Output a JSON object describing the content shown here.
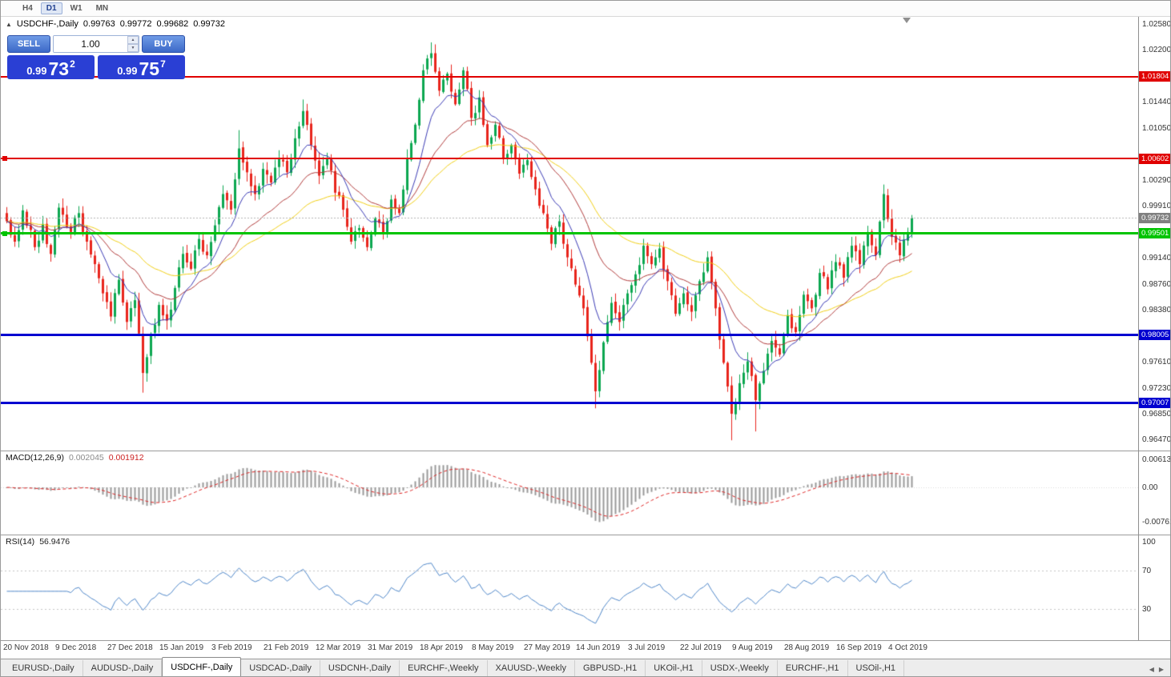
{
  "toolbar": {
    "timeframes": [
      {
        "label": "H4",
        "active": false
      },
      {
        "label": "D1",
        "active": true
      },
      {
        "label": "W1",
        "active": false
      },
      {
        "label": "MN",
        "active": false
      }
    ]
  },
  "icons": {
    "panel_toggle": "▲",
    "spin_up": "▲",
    "spin_down": "▼",
    "tab_left": "◀",
    "tab_right": "▶"
  },
  "chart_header": {
    "symbol": "USDCHF-,Daily",
    "open": "0.99763",
    "high": "0.99772",
    "low": "0.99682",
    "close": "0.99732"
  },
  "trade_panel": {
    "sell_label": "SELL",
    "buy_label": "BUY",
    "volume": "1.00",
    "sell_price": {
      "prefix": "0.99",
      "big": "73",
      "sup": "2"
    },
    "buy_price": {
      "prefix": "0.99",
      "big": "75",
      "sup": "7"
    }
  },
  "macd_panel": {
    "title": "MACD(12,26,9)",
    "value_main": "0.002045",
    "value_signal": "0.001912",
    "axis_labels": [
      "0.00613",
      "0.00",
      "-0.00761"
    ]
  },
  "rsi_panel": {
    "title": "RSI(14)",
    "value": "56.9476",
    "axis_labels": [
      "100",
      "70",
      "30"
    ]
  },
  "bottom_tabs": [
    {
      "label": "EURUSD-,Daily",
      "active": false
    },
    {
      "label": "AUDUSD-,Daily",
      "active": false
    },
    {
      "label": "USDCHF-,Daily",
      "active": true
    },
    {
      "label": "USDCAD-,Daily",
      "active": false
    },
    {
      "label": "USDCNH-,Daily",
      "active": false
    },
    {
      "label": "EURCHF-,Weekly",
      "active": false
    },
    {
      "label": "XAUUSD-,Weekly",
      "active": false
    },
    {
      "label": "GBPUSD-,H1",
      "active": false
    },
    {
      "label": "UKOil-,H1",
      "active": false
    },
    {
      "label": "USDX-,Weekly",
      "active": false
    },
    {
      "label": "EURCHF-,H1",
      "active": false
    },
    {
      "label": "USOil-,H1",
      "active": false
    }
  ],
  "colors": {
    "bull_candle": "#0CA750",
    "bear_candle": "#E8241C",
    "ma_fast": "#3A3AB4",
    "ma_mid": "#B03A3A",
    "ma_slow": "#F0CE15",
    "macd_histogram": "#9a9a9a",
    "macd_signal": "#DD2222",
    "rsi_line": "#4E86C8",
    "bid_line": "#b0b0b0",
    "bid_box": "#808080",
    "buy_sell_button": "#3C69C8",
    "price_box": "#2A3FD4",
    "level_red": "#E00000",
    "level_green": "#00C400",
    "level_blue": "#0000D0"
  },
  "chart_data": {
    "type": "candlestick",
    "symbol": "USDCHF",
    "timeframe": "Daily",
    "current_ohlc": {
      "open": 0.99763,
      "high": 0.99772,
      "low": 0.99682,
      "close": 0.99732
    },
    "bid": 0.99732,
    "price_axis_labels": [
      "1.02580",
      "1.02200",
      "1.01440",
      "1.01050",
      "1.00290",
      "0.99910",
      "0.99140",
      "0.98760",
      "0.98380",
      "0.97610",
      "0.97230",
      "0.96850",
      "0.96470"
    ],
    "price_axis_range": {
      "top": 1.02685,
      "bottom": 0.96265
    },
    "horizontal_levels": [
      {
        "price": 1.01804,
        "color": "#E00000",
        "thickness": 2,
        "label": "1.01804"
      },
      {
        "price": 1.00602,
        "color": "#E00000",
        "thickness": 2,
        "label": "1.00602"
      },
      {
        "price": 0.99501,
        "color": "#00C400",
        "thickness": 3,
        "label": "0.99501"
      },
      {
        "price": 0.98005,
        "color": "#0000D0",
        "thickness": 3,
        "label": "0.98005"
      },
      {
        "price": 0.97007,
        "color": "#0000D0",
        "thickness": 3,
        "label": "0.97007"
      }
    ],
    "date_labels": [
      "20 Nov 2018",
      "9 Dec 2018",
      "27 Dec 2018",
      "15 Jan 2019",
      "3 Feb 2019",
      "21 Feb 2019",
      "12 Mar 2019",
      "31 Mar 2019",
      "18 Apr 2019",
      "8 May 2019",
      "27 May 2019",
      "14 Jun 2019",
      "3 Jul 2019",
      "22 Jul 2019",
      "9 Aug 2019",
      "28 Aug 2019",
      "16 Sep 2019",
      "4 Oct 2019"
    ],
    "bars_total": 227,
    "bars_per_label": 13,
    "close_keyframes": [
      [
        0,
        0.9968
      ],
      [
        2,
        0.9938
      ],
      [
        4,
        0.9984
      ],
      [
        7,
        0.993
      ],
      [
        9,
        0.9964
      ],
      [
        11,
        0.992
      ],
      [
        13,
        0.9988
      ],
      [
        16,
        0.9952
      ],
      [
        18,
        0.998
      ],
      [
        20,
        0.9938
      ],
      [
        22,
        0.9905
      ],
      [
        24,
        0.9862
      ],
      [
        26,
        0.9828
      ],
      [
        28,
        0.9882
      ],
      [
        30,
        0.982
      ],
      [
        32,
        0.9852
      ],
      [
        34,
        0.9745
      ],
      [
        36,
        0.9802
      ],
      [
        38,
        0.9845
      ],
      [
        40,
        0.9822
      ],
      [
        42,
        0.987
      ],
      [
        44,
        0.992
      ],
      [
        46,
        0.9898
      ],
      [
        48,
        0.9942
      ],
      [
        50,
        0.9918
      ],
      [
        52,
        0.9962
      ],
      [
        54,
        1.0008
      ],
      [
        56,
        0.9985
      ],
      [
        58,
        1.0075
      ],
      [
        60,
        1.004
      ],
      [
        62,
        1.0008
      ],
      [
        64,
        1.0045
      ],
      [
        66,
        1.0025
      ],
      [
        68,
        1.006
      ],
      [
        70,
        1.004
      ],
      [
        72,
        1.009
      ],
      [
        74,
        1.013
      ],
      [
        76,
        1.008
      ],
      [
        78,
        1.0035
      ],
      [
        80,
        1.006
      ],
      [
        82,
        1.001
      ],
      [
        84,
        0.9985
      ],
      [
        86,
        0.9938
      ],
      [
        88,
        0.9958
      ],
      [
        90,
        0.993
      ],
      [
        92,
        0.9972
      ],
      [
        94,
        0.995
      ],
      [
        96,
        1.0
      ],
      [
        98,
        0.998
      ],
      [
        100,
        1.006
      ],
      [
        102,
        1.011
      ],
      [
        104,
        1.019
      ],
      [
        106,
        1.0215
      ],
      [
        108,
        1.016
      ],
      [
        110,
        1.0185
      ],
      [
        112,
        1.014
      ],
      [
        114,
        1.019
      ],
      [
        116,
        1.012
      ],
      [
        118,
        1.015
      ],
      [
        120,
        1.008
      ],
      [
        122,
        1.011
      ],
      [
        124,
        1.006
      ],
      [
        126,
        1.008
      ],
      [
        128,
        1.0038
      ],
      [
        130,
        1.0058
      ],
      [
        132,
        1.0015
      ],
      [
        134,
        0.998
      ],
      [
        136,
        0.9935
      ],
      [
        138,
        0.9968
      ],
      [
        140,
        0.9915
      ],
      [
        142,
        0.9875
      ],
      [
        144,
        0.984
      ],
      [
        146,
        0.976
      ],
      [
        147,
        0.9718
      ],
      [
        149,
        0.979
      ],
      [
        151,
        0.9848
      ],
      [
        153,
        0.982
      ],
      [
        155,
        0.9862
      ],
      [
        157,
        0.989
      ],
      [
        159,
        0.9932
      ],
      [
        161,
        0.9905
      ],
      [
        163,
        0.9928
      ],
      [
        165,
        0.988
      ],
      [
        167,
        0.9832
      ],
      [
        169,
        0.9862
      ],
      [
        171,
        0.9835
      ],
      [
        173,
        0.988
      ],
      [
        175,
        0.9915
      ],
      [
        177,
        0.984
      ],
      [
        179,
        0.976
      ],
      [
        181,
        0.9685
      ],
      [
        183,
        0.973
      ],
      [
        185,
        0.9762
      ],
      [
        187,
        0.9705
      ],
      [
        189,
        0.9748
      ],
      [
        191,
        0.9792
      ],
      [
        193,
        0.9772
      ],
      [
        195,
        0.983
      ],
      [
        197,
        0.9805
      ],
      [
        199,
        0.986
      ],
      [
        201,
        0.984
      ],
      [
        203,
        0.9892
      ],
      [
        205,
        0.9868
      ],
      [
        207,
        0.9908
      ],
      [
        209,
        0.9885
      ],
      [
        211,
        0.9932
      ],
      [
        213,
        0.9905
      ],
      [
        215,
        0.9952
      ],
      [
        217,
        0.9918
      ],
      [
        219,
        1.0008
      ],
      [
        221,
        0.9945
      ],
      [
        223,
        0.9918
      ],
      [
        225,
        0.9952
      ],
      [
        226,
        0.9973
      ]
    ],
    "wick_spikes": [
      {
        "bar": 34,
        "low": 0.9716
      },
      {
        "bar": 58,
        "high": 1.0102
      },
      {
        "bar": 74,
        "high": 1.0147
      },
      {
        "bar": 106,
        "high": 1.0231
      },
      {
        "bar": 147,
        "low": 0.9693
      },
      {
        "bar": 181,
        "low": 0.9646
      },
      {
        "bar": 187,
        "low": 0.9659
      },
      {
        "bar": 219,
        "high": 1.0022
      }
    ],
    "moving_averages": [
      {
        "period": 10,
        "color": "#3A3AB4"
      },
      {
        "period": 25,
        "color": "#B03A3A"
      },
      {
        "period": 50,
        "color": "#F0CE15"
      }
    ],
    "macd": {
      "fast": 12,
      "slow": 26,
      "signal": 9,
      "axis_max": 0.00613,
      "axis_min": -0.00761,
      "current_main": 0.002045,
      "current_signal": 0.001912
    },
    "rsi": {
      "period": 14,
      "current": 56.9476,
      "levels": [
        70,
        30
      ],
      "range": [
        0,
        100
      ]
    }
  }
}
